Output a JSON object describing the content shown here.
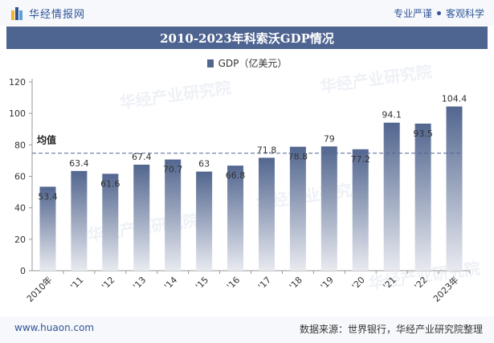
{
  "header": {
    "brand": "华经情报网",
    "slogan_left": "专业严谨",
    "slogan_right": "客观科学"
  },
  "footer": {
    "site": "www.huaon.com",
    "source": "数据来源：世界银行，华经产业研究院整理"
  },
  "watermark": "华经产业研究院",
  "colors": {
    "bar_top": "#52668f",
    "bar_bottom": "#e8eaf0",
    "avg_line": "#52668f",
    "title_bg": "#4e6491"
  },
  "chart_data": {
    "type": "bar",
    "title": "2010-2023年科索沃GDP情况",
    "categories": [
      "2010年",
      "'11",
      "'12",
      "'13",
      "'14",
      "'15",
      "'16",
      "'17",
      "'18",
      "'19",
      "'20",
      "'21",
      "'22",
      "2023年"
    ],
    "series": [
      {
        "name": "GDP（亿美元）",
        "values": [
          53.4,
          63.4,
          61.6,
          67.4,
          70.7,
          63,
          66.8,
          71.8,
          78.8,
          79,
          77.2,
          94.1,
          93.5,
          104.4
        ]
      }
    ],
    "value_labels": [
      "53.4",
      "63.4",
      "61.6",
      "67.4",
      "70.7",
      "63",
      "66.8",
      "71.8",
      "78.8",
      "79",
      "77.2",
      "94.1",
      "93.5",
      "104.4"
    ],
    "ylim": [
      0,
      120
    ],
    "yticks": [
      0,
      20,
      40,
      60,
      80,
      100,
      120
    ],
    "average": {
      "label": "均值",
      "value": 74.7
    },
    "legend_position": "top-center",
    "grid": false
  }
}
